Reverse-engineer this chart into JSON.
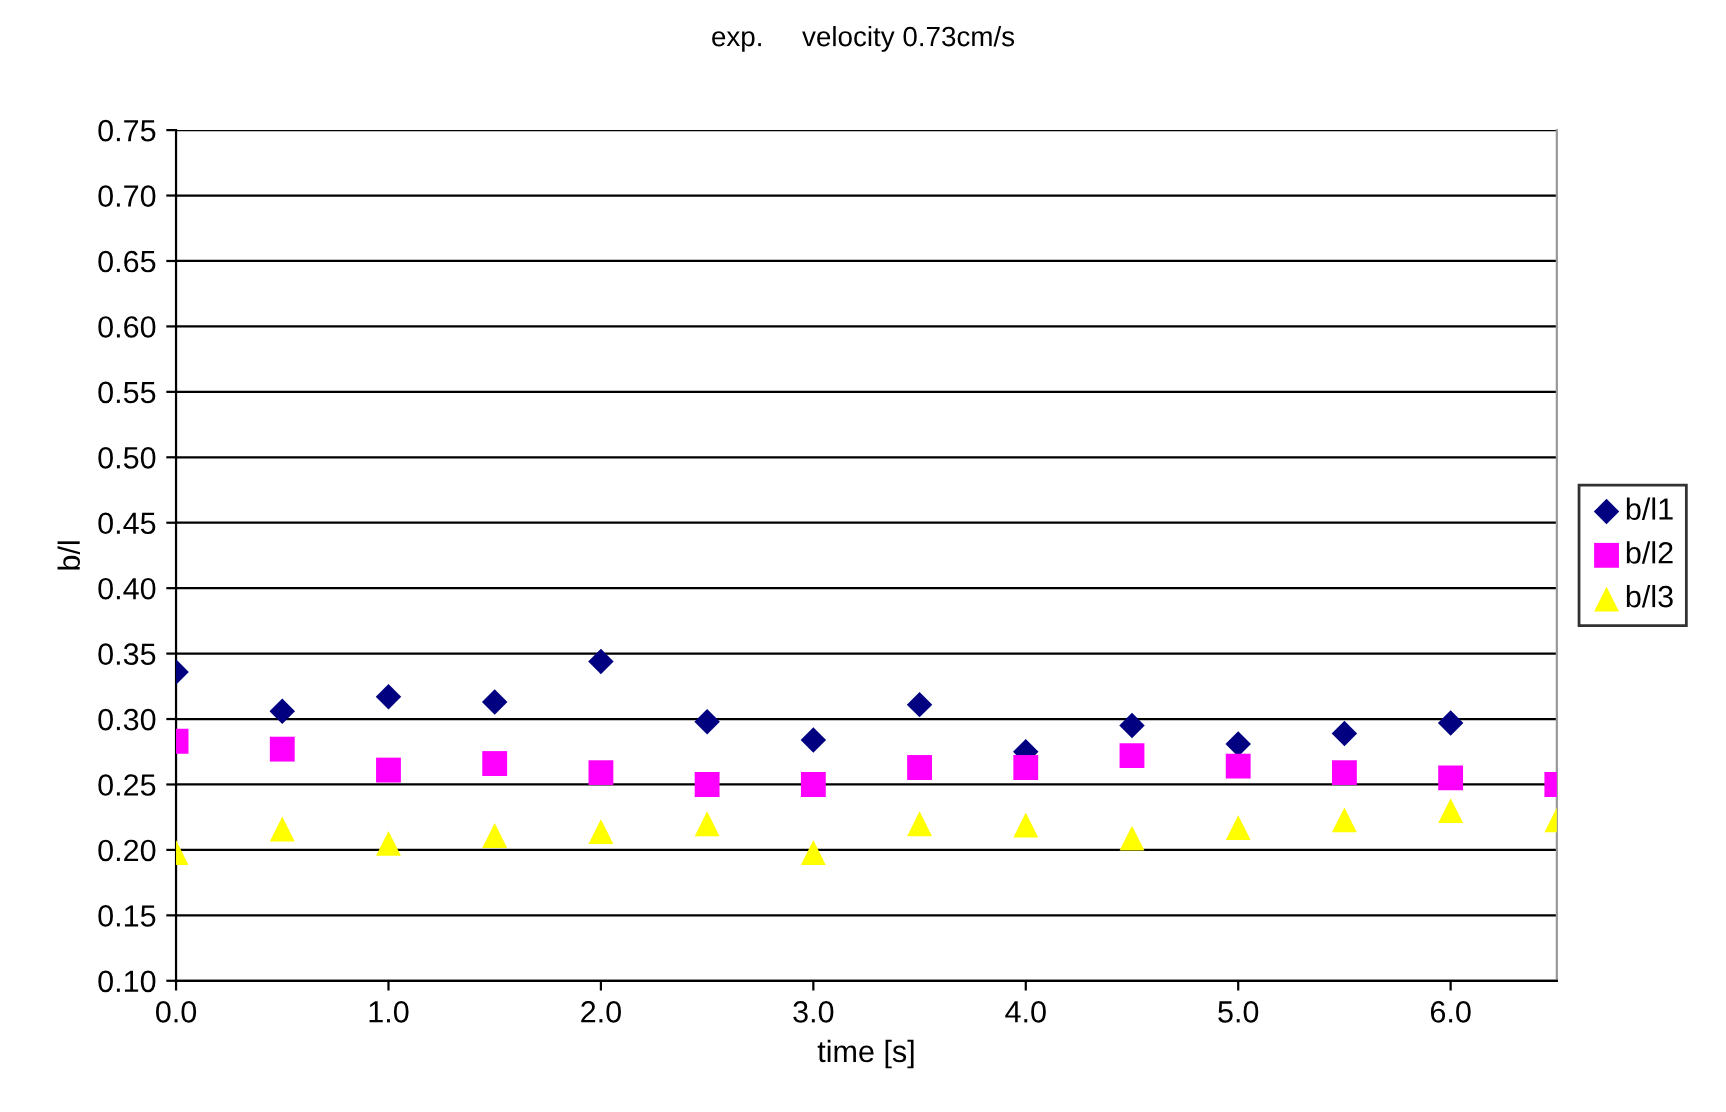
{
  "chart_data": {
    "type": "scatter",
    "title": "exp.     velocity 0.73cm/s",
    "xlabel": "time [s]",
    "ylabel": "b/l",
    "x": [
      0.0,
      0.5,
      1.0,
      1.5,
      2.0,
      2.5,
      3.0,
      3.5,
      4.0,
      4.5,
      5.0,
      5.5,
      6.0,
      6.5
    ],
    "series": [
      {
        "name": "b/l1",
        "color": "#000080",
        "marker": "diamond",
        "values": [
          0.336,
          0.306,
          0.317,
          0.313,
          0.344,
          0.298,
          0.284,
          0.311,
          0.275,
          0.295,
          0.281,
          0.289,
          0.297,
          null
        ]
      },
      {
        "name": "b/l2",
        "color": "#ff00ff",
        "marker": "square",
        "values": [
          0.283,
          0.277,
          0.261,
          0.266,
          0.259,
          0.25,
          0.25,
          0.263,
          0.263,
          0.272,
          0.264,
          0.259,
          0.255,
          0.25
        ]
      },
      {
        "name": "b/l3",
        "color": "#ffff00",
        "marker": "triangle",
        "values": [
          0.198,
          0.216,
          0.205,
          0.211,
          0.214,
          0.22,
          0.198,
          0.22,
          0.219,
          0.209,
          0.217,
          0.223,
          0.23,
          0.223
        ]
      }
    ],
    "xlim": [
      0,
      6.5
    ],
    "xticks": [
      {
        "value": 0,
        "label": "0.0"
      },
      {
        "value": 1,
        "label": "1.0"
      },
      {
        "value": 2,
        "label": "2.0"
      },
      {
        "value": 3,
        "label": "3.0"
      },
      {
        "value": 4,
        "label": "4.0"
      },
      {
        "value": 5,
        "label": "5.0"
      },
      {
        "value": 6,
        "label": "6.0"
      }
    ],
    "ylim": [
      0.1,
      0.75
    ],
    "yticks": [
      {
        "value": 0.1,
        "label": "0.10"
      },
      0.15,
      {
        "value": 0.2,
        "label": "0.20"
      },
      0.25,
      {
        "value": 0.3,
        "label": "0.30"
      },
      0.35,
      {
        "value": 0.4,
        "label": "0.40"
      },
      0.45,
      {
        "value": 0.5,
        "label": "0.50"
      },
      0.55,
      {
        "value": 0.6,
        "label": "0.60"
      },
      0.65,
      {
        "value": 0.7,
        "label": "0.70"
      },
      0.75
    ],
    "grid": "y",
    "legend": "right"
  }
}
